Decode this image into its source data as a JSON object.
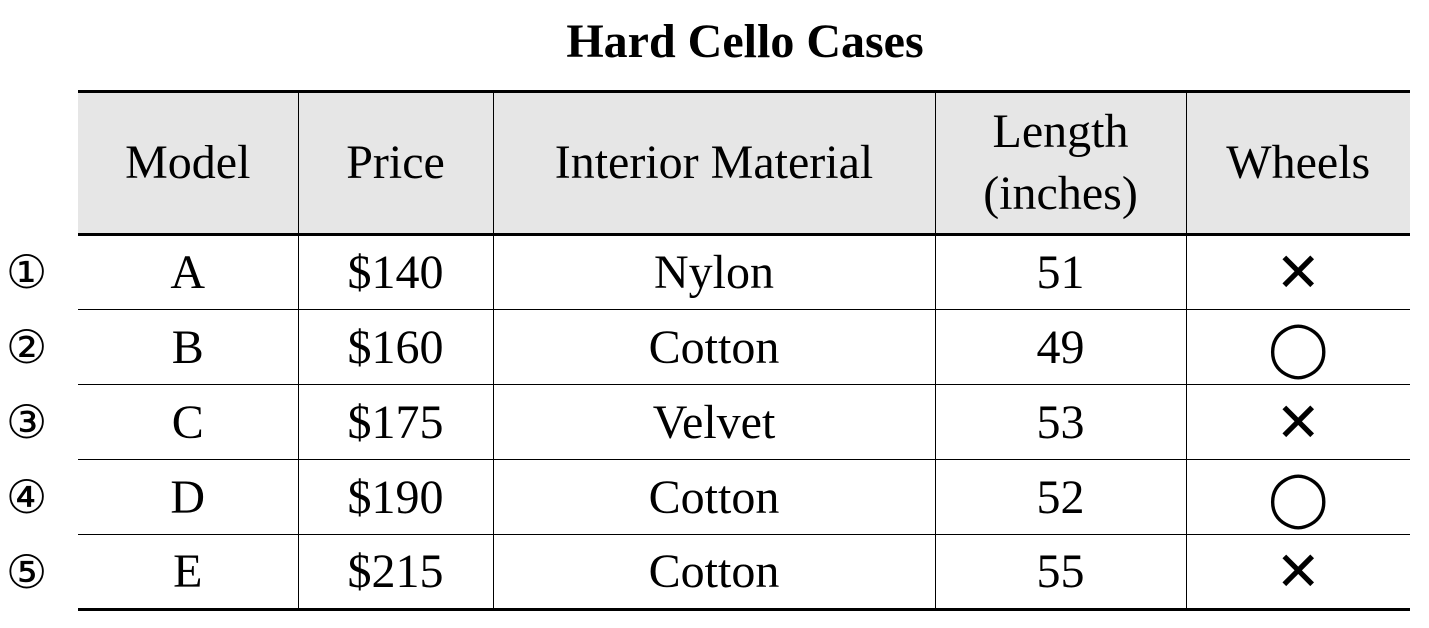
{
  "title": "Hard Cello Cases",
  "headers": [
    "Model",
    "Price",
    "Interior Material",
    "Length (inches)",
    "Wheels"
  ],
  "header_length_lines": [
    "Length",
    "(inches)"
  ],
  "options": [
    "①",
    "②",
    "③",
    "④",
    "⑤"
  ],
  "rows": [
    {
      "model": "A",
      "price": "$140",
      "material": "Nylon",
      "length": "51",
      "wheels": "✕"
    },
    {
      "model": "B",
      "price": "$160",
      "material": "Cotton",
      "length": "49",
      "wheels": "◯"
    },
    {
      "model": "C",
      "price": "$175",
      "material": "Velvet",
      "length": "53",
      "wheels": "✕"
    },
    {
      "model": "D",
      "price": "$190",
      "material": "Cotton",
      "length": "52",
      "wheels": "◯"
    },
    {
      "model": "E",
      "price": "$215",
      "material": "Cotton",
      "length": "55",
      "wheels": "✕"
    }
  ]
}
